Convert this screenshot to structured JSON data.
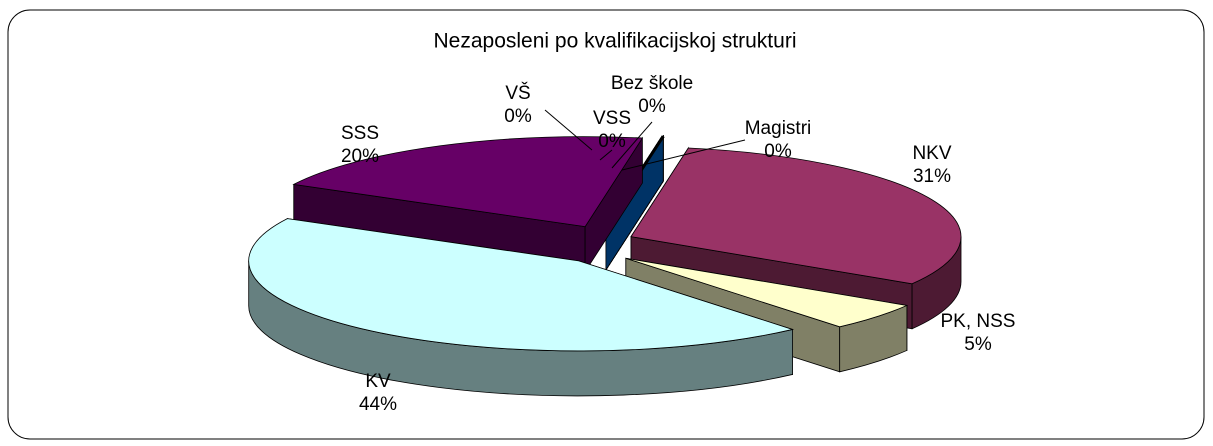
{
  "chart_data": {
    "type": "pie",
    "title": "Nezaposleni po kvalifikacijskoj strukturi",
    "categories": [
      "NKV",
      "PK, NSS",
      "KV",
      "SSS",
      "VŠ",
      "VSS",
      "Bez škole",
      "Magistri"
    ],
    "values": [
      31,
      5,
      44,
      20,
      0,
      0,
      0,
      0
    ],
    "value_labels": [
      "31%",
      "5%",
      "44%",
      "20%",
      "0%",
      "0%",
      "0%",
      "0%"
    ],
    "colors": [
      "#993366",
      "#FFFFCC",
      "#CCFFFF",
      "#660066",
      "#993322",
      "#CC3333",
      "#000080",
      "#0066CC"
    ]
  }
}
